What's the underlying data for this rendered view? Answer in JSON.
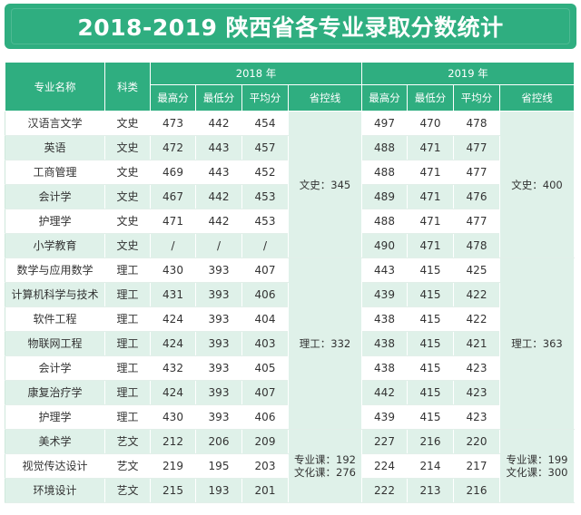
{
  "title": "2018-2019 陕西省各专业录取分数统计",
  "header": {
    "major": "专业名称",
    "subject": "科类",
    "year2018": "2018 年",
    "year2019": "2019 年",
    "cols": [
      "最高分",
      "最低分",
      "平均分",
      "省控线"
    ]
  },
  "rows": [
    {
      "major": "汉语言文学",
      "subject": "文史",
      "y2018": [
        "473",
        "442",
        "454"
      ],
      "y2019": [
        "497",
        "470",
        "478"
      ]
    },
    {
      "major": "英语",
      "subject": "文史",
      "y2018": [
        "472",
        "443",
        "457"
      ],
      "y2019": [
        "488",
        "471",
        "477"
      ]
    },
    {
      "major": "工商管理",
      "subject": "文史",
      "y2018": [
        "469",
        "443",
        "452"
      ],
      "y2019": [
        "488",
        "471",
        "477"
      ]
    },
    {
      "major": "会计学",
      "subject": "文史",
      "y2018": [
        "467",
        "442",
        "453"
      ],
      "y2019": [
        "489",
        "471",
        "476"
      ]
    },
    {
      "major": "护理学",
      "subject": "文史",
      "y2018": [
        "471",
        "442",
        "453"
      ],
      "y2019": [
        "488",
        "471",
        "477"
      ]
    },
    {
      "major": "小学教育",
      "subject": "文史",
      "y2018": [
        "/",
        "/",
        "/"
      ],
      "y2019": [
        "490",
        "471",
        "478"
      ]
    },
    {
      "major": "数学与应用数学",
      "subject": "理工",
      "y2018": [
        "430",
        "393",
        "407"
      ],
      "y2019": [
        "443",
        "415",
        "425"
      ]
    },
    {
      "major": "计算机科学与技术",
      "subject": "理工",
      "y2018": [
        "431",
        "393",
        "406"
      ],
      "y2019": [
        "439",
        "415",
        "422"
      ]
    },
    {
      "major": "软件工程",
      "subject": "理工",
      "y2018": [
        "424",
        "393",
        "404"
      ],
      "y2019": [
        "438",
        "415",
        "422"
      ]
    },
    {
      "major": "物联网工程",
      "subject": "理工",
      "y2018": [
        "424",
        "393",
        "403"
      ],
      "y2019": [
        "438",
        "415",
        "421"
      ]
    },
    {
      "major": "会计学",
      "subject": "理工",
      "y2018": [
        "432",
        "393",
        "405"
      ],
      "y2019": [
        "438",
        "415",
        "423"
      ]
    },
    {
      "major": "康复治疗学",
      "subject": "理工",
      "y2018": [
        "424",
        "393",
        "407"
      ],
      "y2019": [
        "442",
        "415",
        "423"
      ]
    },
    {
      "major": "护理学",
      "subject": "理工",
      "y2018": [
        "430",
        "393",
        "406"
      ],
      "y2019": [
        "439",
        "415",
        "423"
      ]
    },
    {
      "major": "美术学",
      "subject": "艺文",
      "y2018": [
        "212",
        "206",
        "209"
      ],
      "y2019": [
        "227",
        "216",
        "220"
      ]
    },
    {
      "major": "视觉传达设计",
      "subject": "艺文",
      "y2018": [
        "219",
        "195",
        "203"
      ],
      "y2019": [
        "224",
        "214",
        "217"
      ]
    },
    {
      "major": "环境设计",
      "subject": "艺文",
      "y2018": [
        "215",
        "193",
        "201"
      ],
      "y2019": [
        "222",
        "213",
        "216"
      ]
    }
  ],
  "control_lines": {
    "y2018": {
      "wenshi": "文史：345",
      "ligong": "理工：332",
      "yiwen_1": "专业课：192",
      "yiwen_2": "文化课：276"
    },
    "y2019": {
      "wenshi": "文史：400",
      "ligong": "理工：363",
      "yiwen_1": "专业课：199",
      "yiwen_2": "文化课：300"
    }
  },
  "colors": {
    "header_green": "#2fae80",
    "stripe_green": "#dff1e9"
  }
}
